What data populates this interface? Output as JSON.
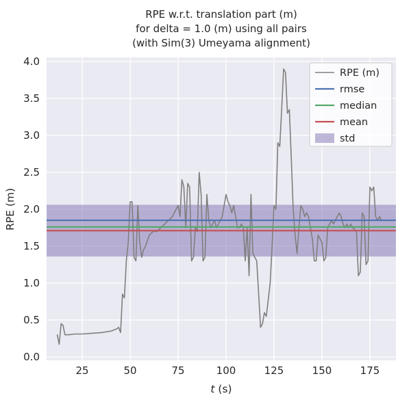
{
  "chart_data": {
    "type": "line",
    "title_lines": [
      "RPE w.r.t. translation part (m)",
      "for delta = 1.0 (m) using all pairs",
      "(with Sim(3) Umeyama alignment)"
    ],
    "xlabel_italic": "t",
    "xlabel_unit": " (s)",
    "ylabel": "RPE (m)",
    "x_ticks": [
      25,
      50,
      75,
      100,
      125,
      150,
      175
    ],
    "y_ticks": [
      0.0,
      0.5,
      1.0,
      1.5,
      2.0,
      2.5,
      3.0,
      3.5,
      4.0
    ],
    "xlim": [
      6.5,
      189
    ],
    "ylim": [
      0.0,
      4.0
    ],
    "grid": true,
    "legend_position": "upper right",
    "stats": {
      "rmse": 1.85,
      "median": 1.76,
      "mean": 1.71,
      "std": 0.35
    },
    "colors": {
      "rpe": "#7f7f7f",
      "rmse": "#4c72b0",
      "median": "#55a868",
      "mean": "#c44e52",
      "std": "#8172b2",
      "plot_bg": "#eaeaf2",
      "grid": "#ffffff"
    },
    "legend": [
      {
        "label": "RPE (m)",
        "type": "line",
        "color_key": "rpe"
      },
      {
        "label": "rmse",
        "type": "line",
        "color_key": "rmse"
      },
      {
        "label": "median",
        "type": "line",
        "color_key": "median"
      },
      {
        "label": "mean",
        "type": "line",
        "color_key": "mean"
      },
      {
        "label": "std",
        "type": "patch",
        "color_key": "std"
      }
    ],
    "series": [
      {
        "name": "RPE (m)",
        "x": [
          12,
          13,
          14,
          15,
          16,
          18,
          21,
          25,
          30,
          35,
          40,
          43,
          44,
          45,
          46,
          47,
          48,
          49,
          50,
          51,
          52,
          53,
          54,
          55,
          56,
          57,
          58,
          60,
          62,
          64,
          66,
          68,
          70,
          72,
          74,
          75,
          76,
          77,
          78,
          79,
          80,
          81,
          82,
          83,
          84,
          85,
          86,
          87,
          88,
          89,
          90,
          91,
          92,
          93,
          94,
          95,
          96,
          97,
          98,
          100,
          101,
          102,
          103,
          104,
          105,
          106,
          107,
          108,
          109,
          110,
          111,
          112,
          113,
          114,
          115,
          116,
          117,
          118,
          119,
          120,
          121,
          123,
          124,
          125,
          126,
          127,
          128,
          129,
          130,
          131,
          132,
          133,
          134,
          135,
          136,
          137,
          138,
          139,
          140,
          141,
          142,
          143,
          144,
          145,
          146,
          147,
          148,
          149,
          150,
          151,
          152,
          153,
          154,
          155,
          156,
          157,
          158,
          159,
          160,
          161,
          162,
          163,
          164,
          165,
          166,
          168,
          169,
          170,
          171,
          172,
          173,
          174,
          175,
          176,
          177,
          178,
          179,
          180,
          181,
          183
        ],
        "y": [
          0.3,
          0.17,
          0.45,
          0.43,
          0.3,
          0.3,
          0.31,
          0.31,
          0.32,
          0.33,
          0.35,
          0.38,
          0.4,
          0.33,
          0.85,
          0.8,
          1.3,
          1.55,
          2.1,
          2.1,
          1.35,
          1.3,
          2.05,
          1.55,
          1.35,
          1.45,
          1.5,
          1.65,
          1.7,
          1.7,
          1.75,
          1.8,
          1.85,
          1.9,
          2.0,
          2.05,
          1.9,
          2.4,
          2.3,
          1.75,
          2.35,
          2.3,
          1.3,
          1.35,
          1.75,
          1.7,
          2.5,
          2.2,
          1.3,
          1.35,
          2.2,
          1.85,
          1.75,
          1.8,
          1.85,
          1.75,
          1.8,
          1.85,
          1.9,
          2.2,
          2.1,
          2.05,
          1.95,
          2.05,
          1.9,
          1.75,
          1.75,
          1.8,
          1.75,
          1.3,
          1.75,
          1.1,
          2.2,
          1.4,
          1.35,
          1.3,
          0.85,
          0.4,
          0.45,
          0.6,
          0.55,
          1.0,
          1.5,
          2.05,
          2.0,
          2.9,
          2.85,
          3.35,
          3.9,
          3.85,
          3.3,
          3.35,
          2.7,
          2.0,
          1.65,
          1.4,
          1.75,
          2.05,
          2.0,
          1.9,
          1.95,
          1.9,
          1.75,
          1.6,
          1.3,
          1.3,
          1.65,
          1.6,
          1.55,
          1.3,
          1.35,
          1.75,
          1.8,
          1.85,
          1.8,
          1.85,
          1.9,
          1.95,
          1.9,
          1.8,
          1.75,
          1.8,
          1.75,
          1.8,
          1.75,
          1.7,
          1.1,
          1.15,
          1.95,
          1.9,
          1.25,
          1.3,
          2.3,
          2.25,
          2.3,
          1.9,
          1.85,
          1.9,
          1.85,
          1.85
        ]
      }
    ]
  }
}
